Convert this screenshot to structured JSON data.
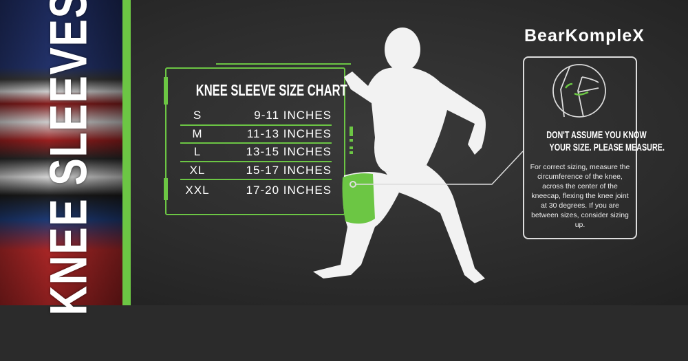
{
  "banner": {
    "vertical_title": "KNEE SLEEVES"
  },
  "size_chart": {
    "title": "KNEE SLEEVE SIZE CHART",
    "rows": [
      {
        "size": "S",
        "range": "9-11 INCHES"
      },
      {
        "size": "M",
        "range": "11-13 INCHES"
      },
      {
        "size": "L",
        "range": "13-15 INCHES"
      },
      {
        "size": "XL",
        "range": "15-17 INCHES"
      },
      {
        "size": "XXL",
        "range": "17-20 INCHES"
      }
    ]
  },
  "brand": {
    "logo": "BearKompleX"
  },
  "measure": {
    "heading_line1": "DON'T ASSUME YOU KNOW",
    "heading_line2": "YOUR SIZE. PLEASE MEASURE.",
    "body": "For correct sizing, measure the circumference of the knee, across the center of the kneecap, flexing the knee joint at 30 degrees. If you are between sizes, consider sizing up."
  },
  "colors": {
    "accent": "#6cc644",
    "background": "#2b2b2b",
    "text": "#ffffff"
  }
}
